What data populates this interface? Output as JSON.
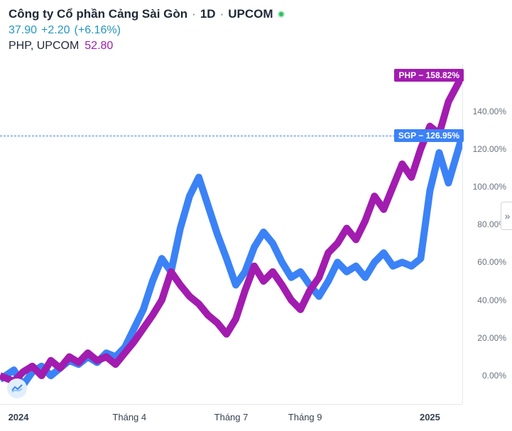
{
  "header": {
    "company": "Công ty Cổ phần Cảng Sài Gòn",
    "interval": "1D",
    "exchange": "UPCOM",
    "status_color": "#22c55e",
    "price": "37.90",
    "change": "+2.20",
    "change_pct": "(+6.16%)",
    "compare_symbol": "PHP, UPCOM",
    "compare_price": "52.80"
  },
  "chart": {
    "type": "line",
    "background_color": "#ffffff",
    "grid_color": "#e5e7eb",
    "y_axis": {
      "min": -15,
      "max": 165,
      "ticks": [
        0,
        20,
        40,
        60,
        80,
        100,
        120,
        140
      ],
      "suffix": "%",
      "label_fontsize": 12,
      "label_color": "#6b7280"
    },
    "x_axis": {
      "ticks": [
        {
          "pos": 0.04,
          "label": "2024",
          "bold": true
        },
        {
          "pos": 0.28,
          "label": "Tháng 4",
          "bold": false
        },
        {
          "pos": 0.5,
          "label": "Tháng 7",
          "bold": false
        },
        {
          "pos": 0.66,
          "label": "Tháng 9",
          "bold": false
        },
        {
          "pos": 0.93,
          "label": "2025",
          "bold": true
        }
      ],
      "label_fontsize": 13,
      "label_color": "#374151"
    },
    "series": [
      {
        "name": "SGP",
        "color": "#3b82f6",
        "line_width": 2,
        "last_value": 126.95,
        "badge_text": "SGP − 126.95%",
        "points": [
          [
            0.0,
            -2
          ],
          [
            0.03,
            3
          ],
          [
            0.05,
            -5
          ],
          [
            0.07,
            2
          ],
          [
            0.09,
            5
          ],
          [
            0.11,
            0
          ],
          [
            0.13,
            4
          ],
          [
            0.15,
            8
          ],
          [
            0.17,
            6
          ],
          [
            0.19,
            10
          ],
          [
            0.21,
            7
          ],
          [
            0.23,
            12
          ],
          [
            0.25,
            10
          ],
          [
            0.27,
            15
          ],
          [
            0.29,
            25
          ],
          [
            0.31,
            35
          ],
          [
            0.33,
            50
          ],
          [
            0.35,
            62
          ],
          [
            0.37,
            55
          ],
          [
            0.39,
            78
          ],
          [
            0.41,
            95
          ],
          [
            0.43,
            105
          ],
          [
            0.45,
            90
          ],
          [
            0.47,
            75
          ],
          [
            0.49,
            62
          ],
          [
            0.51,
            48
          ],
          [
            0.53,
            55
          ],
          [
            0.55,
            68
          ],
          [
            0.57,
            76
          ],
          [
            0.59,
            70
          ],
          [
            0.61,
            60
          ],
          [
            0.63,
            52
          ],
          [
            0.65,
            55
          ],
          [
            0.67,
            48
          ],
          [
            0.69,
            42
          ],
          [
            0.71,
            50
          ],
          [
            0.73,
            60
          ],
          [
            0.75,
            55
          ],
          [
            0.77,
            58
          ],
          [
            0.79,
            52
          ],
          [
            0.81,
            60
          ],
          [
            0.83,
            65
          ],
          [
            0.85,
            58
          ],
          [
            0.87,
            60
          ],
          [
            0.89,
            58
          ],
          [
            0.91,
            62
          ],
          [
            0.93,
            98
          ],
          [
            0.95,
            118
          ],
          [
            0.97,
            102
          ],
          [
            1.0,
            126.95
          ]
        ]
      },
      {
        "name": "PHP",
        "color": "#a21caf",
        "line_width": 2,
        "last_value": 158.82,
        "badge_text": "PHP − 158.82%",
        "points": [
          [
            0.0,
            0
          ],
          [
            0.03,
            -3
          ],
          [
            0.05,
            2
          ],
          [
            0.07,
            5
          ],
          [
            0.09,
            0
          ],
          [
            0.11,
            8
          ],
          [
            0.13,
            4
          ],
          [
            0.15,
            10
          ],
          [
            0.17,
            7
          ],
          [
            0.19,
            12
          ],
          [
            0.21,
            8
          ],
          [
            0.23,
            10
          ],
          [
            0.25,
            6
          ],
          [
            0.27,
            12
          ],
          [
            0.29,
            18
          ],
          [
            0.31,
            25
          ],
          [
            0.33,
            32
          ],
          [
            0.35,
            40
          ],
          [
            0.37,
            55
          ],
          [
            0.39,
            48
          ],
          [
            0.41,
            42
          ],
          [
            0.43,
            38
          ],
          [
            0.45,
            32
          ],
          [
            0.47,
            28
          ],
          [
            0.49,
            22
          ],
          [
            0.51,
            30
          ],
          [
            0.53,
            45
          ],
          [
            0.55,
            58
          ],
          [
            0.57,
            50
          ],
          [
            0.59,
            55
          ],
          [
            0.61,
            48
          ],
          [
            0.63,
            40
          ],
          [
            0.65,
            35
          ],
          [
            0.67,
            45
          ],
          [
            0.69,
            52
          ],
          [
            0.71,
            65
          ],
          [
            0.73,
            70
          ],
          [
            0.75,
            78
          ],
          [
            0.77,
            72
          ],
          [
            0.79,
            82
          ],
          [
            0.81,
            95
          ],
          [
            0.83,
            88
          ],
          [
            0.85,
            100
          ],
          [
            0.87,
            112
          ],
          [
            0.89,
            105
          ],
          [
            0.91,
            120
          ],
          [
            0.93,
            132
          ],
          [
            0.95,
            128
          ],
          [
            0.97,
            145
          ],
          [
            1.0,
            158.82
          ]
        ]
      }
    ],
    "reference_line": {
      "value": 126.95,
      "color": "#3b82f6"
    }
  },
  "icons": {
    "indicator": "indicator-icon",
    "expand": "»"
  }
}
